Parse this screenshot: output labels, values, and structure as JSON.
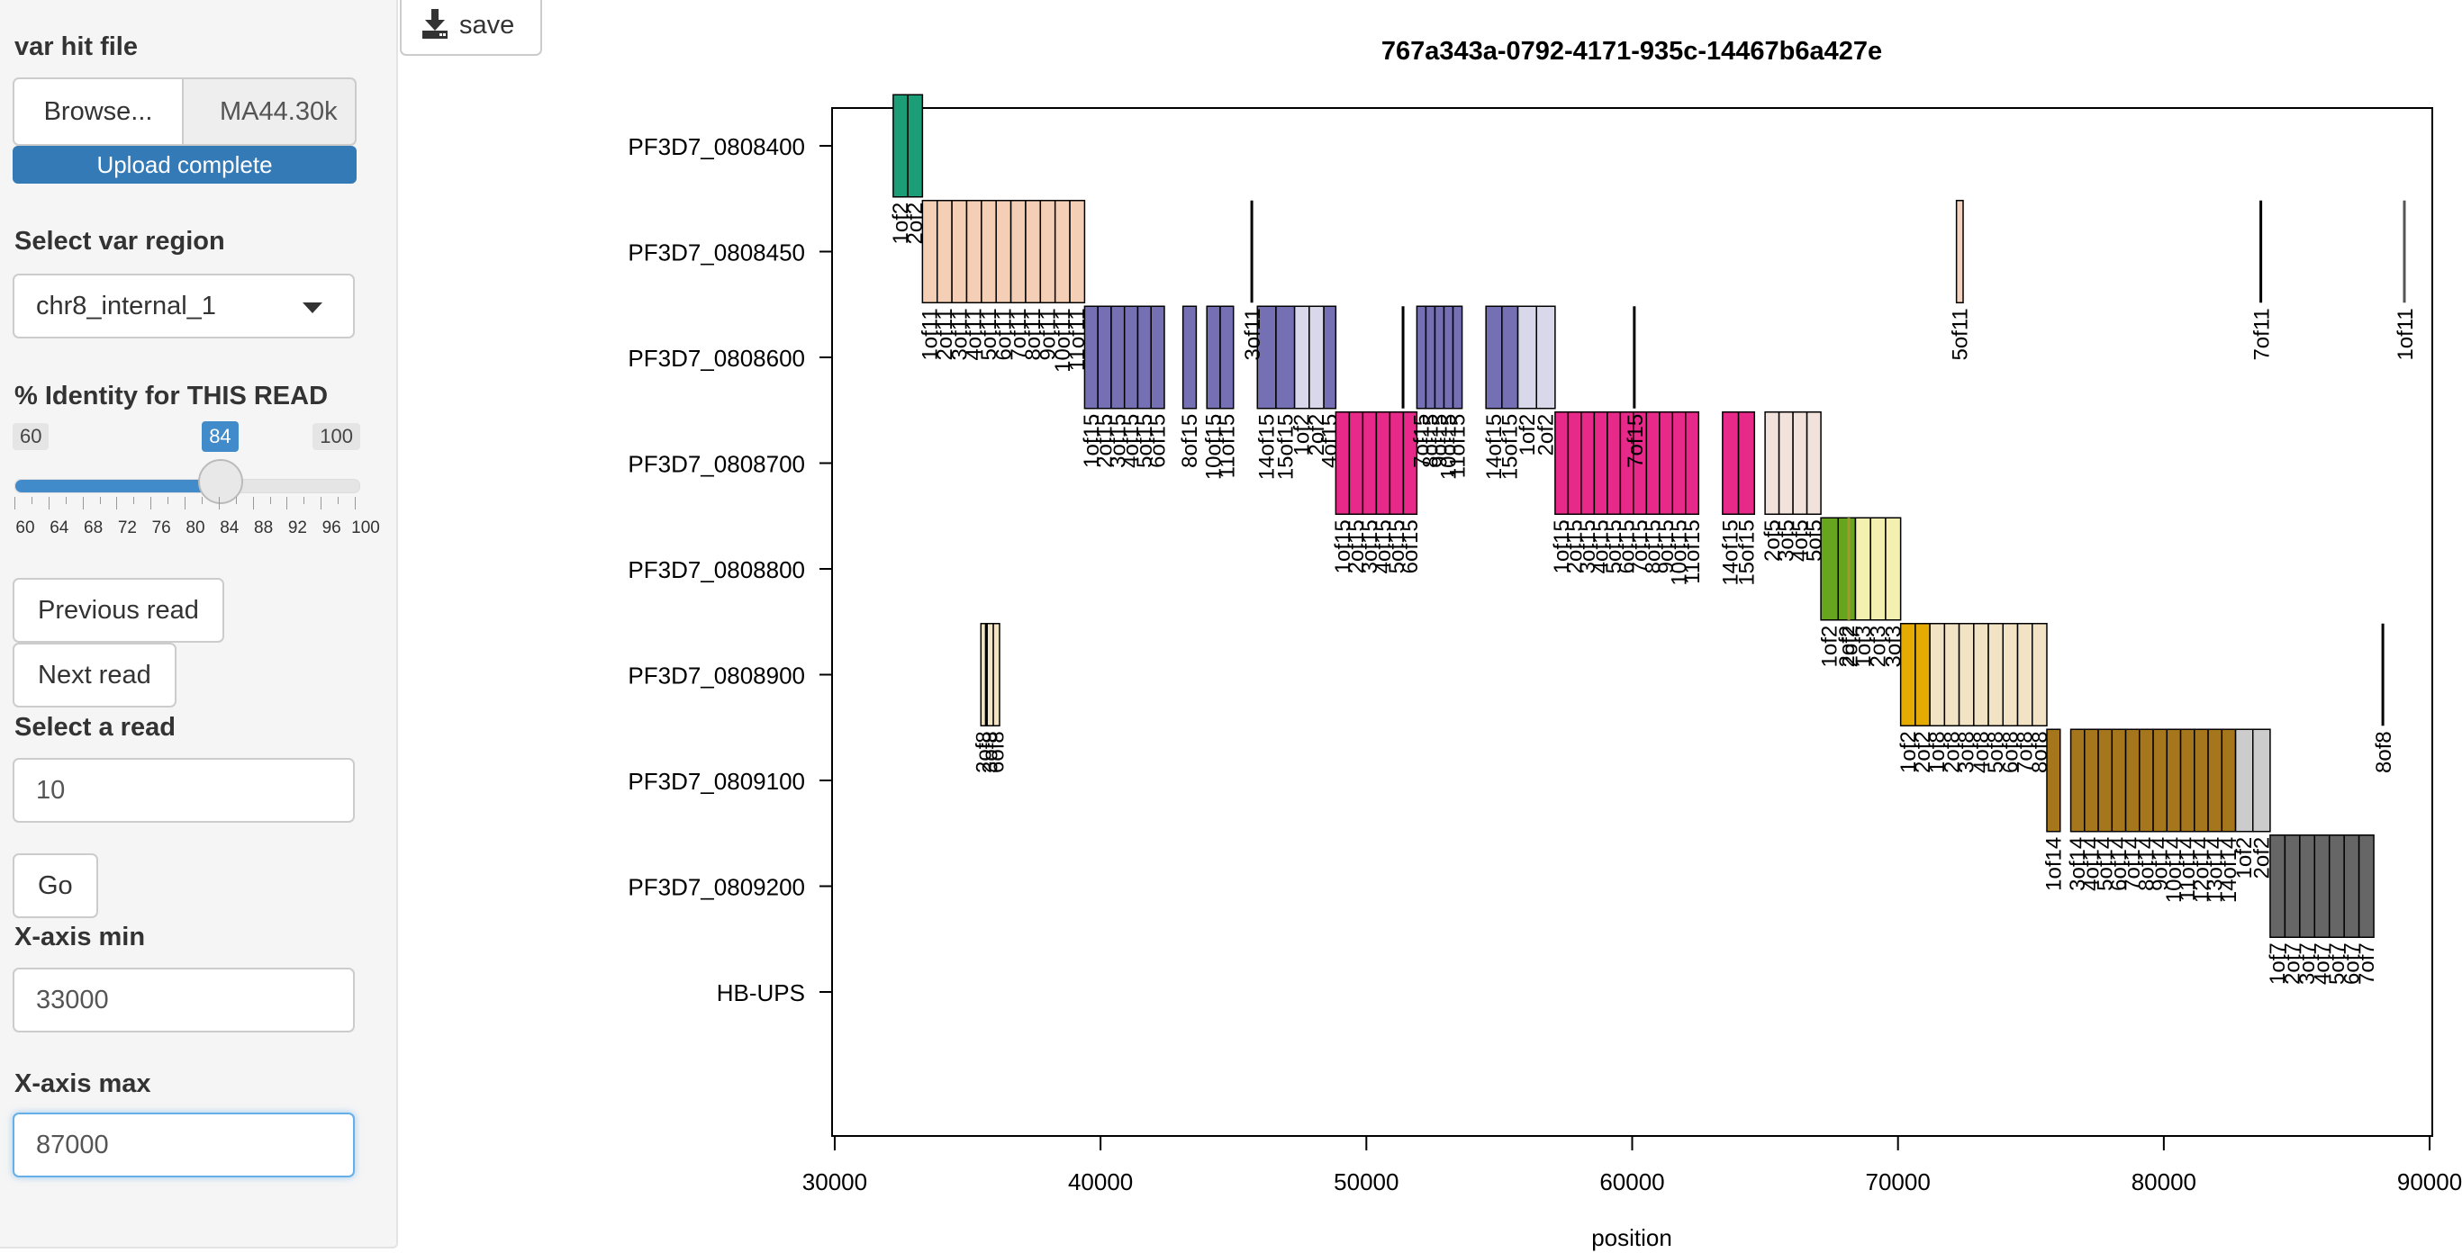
{
  "sidebar": {
    "file_label": "var hit file",
    "browse_label": "Browse...",
    "file_name": "MA44.30k",
    "upload_status": "Upload complete",
    "region_label": "Select var region",
    "region_value": "chr8_internal_1",
    "identity_label": "% Identity for THIS READ",
    "slider": {
      "min": 60,
      "max": 100,
      "value": 84,
      "step": 2,
      "tick_labels": [
        "60",
        "64",
        "68",
        "72",
        "76",
        "80",
        "84",
        "88",
        "92",
        "96",
        "100"
      ]
    },
    "prev_label": "Previous read",
    "next_label": "Next read",
    "read_label": "Select a read",
    "read_value": "10",
    "go_label": "Go",
    "xmin_label": "X-axis min",
    "xmin_value": "33000",
    "xmax_label": "X-axis max",
    "xmax_value": "87000"
  },
  "save_label": "save",
  "chart_data": {
    "type": "bar",
    "title": "767a343a-0792-4171-935c-14467b6a427e",
    "xlabel": "position",
    "ylabel": "",
    "xlim": [
      29900,
      90100
    ],
    "x_ticks": [
      "30000",
      "40000",
      "50000",
      "60000",
      "70000",
      "80000",
      "90000"
    ],
    "categories": [
      "HB-UPS",
      "PF3D7_0809200",
      "PF3D7_0809100",
      "PF3D7_0808900",
      "PF3D7_0808800",
      "PF3D7_0808700",
      "PF3D7_0808600",
      "PF3D7_0808450",
      "PF3D7_0808400"
    ],
    "segments": [
      {
        "gene": "PF3D7_0808400",
        "color": "#1b9e77",
        "start": 32200,
        "end": 33300,
        "labels": [
          "1of2",
          "2of2"
        ]
      },
      {
        "gene": "PF3D7_0808450",
        "color": "#f5cfb5",
        "start": 33300,
        "end": 39400,
        "labels": [
          "1of11",
          "2of11",
          "3of11",
          "4of11",
          "5of11",
          "6of11",
          "7of11",
          "8of11",
          "9of11",
          "10of11",
          "11of11"
        ]
      },
      {
        "gene": "PF3D7_0808600",
        "color": "#7570b3",
        "start": 39400,
        "end": 42400,
        "labels": [
          "1of15",
          "2of15",
          "3of15",
          "4of15",
          "5of15",
          "6of15"
        ]
      },
      {
        "gene": "PF3D7_0808600",
        "color": "#7570b3",
        "start": 43100,
        "end": 43600,
        "labels": [
          "8of15"
        ]
      },
      {
        "gene": "PF3D7_0808600",
        "color": "#7570b3",
        "start": 44000,
        "end": 45000,
        "labels": [
          "10of15",
          "11of15"
        ]
      },
      {
        "gene": "PF3D7_0808600",
        "color": "#7570b3",
        "start": 45900,
        "end": 47300,
        "labels": [
          "14of15",
          "15of15"
        ]
      },
      {
        "gene": "PF3D7_0808600",
        "color": "#d9d7ea",
        "start": 47300,
        "end": 48400,
        "labels": [
          "1of2",
          "2of2"
        ]
      },
      {
        "gene": "PF3D7_0808600",
        "color": "#7570b3",
        "start": 48400,
        "end": 48850,
        "labels": [
          "4of15"
        ]
      },
      {
        "gene": "PF3D7_0808700",
        "color": "#e7298a",
        "start": 48850,
        "end": 51900,
        "labels": [
          "1of15",
          "2of15",
          "3of15",
          "4of15",
          "5of15",
          "6of15"
        ]
      },
      {
        "gene": "PF3D7_0808600",
        "color": "#7570b3",
        "start": 51900,
        "end": 53600,
        "labels": [
          "7of15",
          "8of15",
          "9of15",
          "10of15",
          "11of15"
        ]
      },
      {
        "gene": "PF3D7_0808600",
        "color": "#7570b3",
        "start": 54500,
        "end": 55700,
        "labels": [
          "14of15",
          "15of15"
        ]
      },
      {
        "gene": "PF3D7_0808600",
        "color": "#d9d7ea",
        "start": 55700,
        "end": 57100,
        "labels": [
          "1of2",
          "2of2"
        ]
      },
      {
        "gene": "PF3D7_0808700",
        "color": "#e7298a",
        "start": 57100,
        "end": 62500,
        "labels": [
          "1of15",
          "2of15",
          "3of15",
          "4of15",
          "5of15",
          "6of15",
          "7of15",
          "8of15",
          "9of15",
          "10of15",
          "11of15"
        ]
      },
      {
        "gene": "PF3D7_0808700",
        "color": "#e7298a",
        "start": 63400,
        "end": 64600,
        "labels": [
          "14of15",
          "15of15"
        ]
      },
      {
        "gene": "PF3D7_0808700",
        "color": "#f1e3dc",
        "start": 65000,
        "end": 67100,
        "labels": [
          "2of5",
          "3of5",
          "4of5",
          "5of5"
        ]
      },
      {
        "gene": "PF3D7_0808800",
        "color": "#66a61e",
        "start": 67100,
        "end": 68400,
        "labels": [
          "1of2",
          "2of2"
        ]
      },
      {
        "gene": "PF3D7_0808800",
        "color": "#f3f0b0",
        "start": 68400,
        "end": 70100,
        "labels": [
          "1of3",
          "2of3",
          "3of3"
        ]
      },
      {
        "gene": "PF3D7_0808900",
        "color": "#e6ab02",
        "start": 70100,
        "end": 71200,
        "labels": [
          "1of2",
          "2of2"
        ]
      },
      {
        "gene": "PF3D7_0808900",
        "color": "#f3e3c5",
        "start": 71200,
        "end": 75600,
        "labels": [
          "1of8",
          "2of8",
          "3of8",
          "4of8",
          "5of8",
          "6of8",
          "7of8",
          "8of8"
        ]
      },
      {
        "gene": "PF3D7_0809100",
        "color": "#a6761d",
        "start": 75600,
        "end": 76100,
        "labels": [
          "1of14"
        ]
      },
      {
        "gene": "PF3D7_0809100",
        "color": "#a6761d",
        "start": 76500,
        "end": 82700,
        "labels": [
          "3of14",
          "4of14",
          "5of14",
          "6of14",
          "7of14",
          "8of14",
          "9of14",
          "10of14",
          "11of14",
          "12of14",
          "13of14",
          "14of14"
        ]
      },
      {
        "gene": "PF3D7_0809100",
        "color": "#cccccc",
        "start": 82700,
        "end": 84000,
        "labels": [
          "1of2",
          "2of2"
        ]
      },
      {
        "gene": "PF3D7_0809200",
        "color": "#666666",
        "start": 84000,
        "end": 87900,
        "labels": [
          "1of7",
          "2of7",
          "3of7",
          "4of7",
          "5of7",
          "6of7",
          "7of7"
        ]
      },
      {
        "gene": "PF3D7_0808900",
        "color": "#f3e3c5",
        "start": 35500,
        "end": 36200,
        "labels": [
          "2of8",
          "3of8",
          "6of8"
        ]
      },
      {
        "gene": "PF3D7_0808900",
        "color": "#000000",
        "start": 35700,
        "end": 35720,
        "labels": []
      },
      {
        "gene": "PF3D7_0808800",
        "color": "#a09a30",
        "start": 68150,
        "end": 68250,
        "labels": [
          "2of2"
        ]
      },
      {
        "gene": "PF3D7_0808900",
        "color": "#000000",
        "start": 88240,
        "end": 88300,
        "labels": [
          "8of8"
        ]
      },
      {
        "gene": "PF3D7_0808450",
        "color": "#f3d3c0",
        "start": 72200,
        "end": 72450,
        "labels": [
          "5of11"
        ]
      },
      {
        "gene": "PF3D7_0808450",
        "color": "#000000",
        "start": 45690,
        "end": 45720,
        "labels": [
          "3of11"
        ]
      },
      {
        "gene": "PF3D7_0808450",
        "color": "#000000",
        "start": 83650,
        "end": 83700,
        "labels": [
          "7of11"
        ]
      },
      {
        "gene": "PF3D7_0808450",
        "color": "#555555",
        "start": 89050,
        "end": 89110,
        "labels": [
          "1of11"
        ]
      },
      {
        "gene": "PF3D7_0808600",
        "color": "#000000",
        "start": 51380,
        "end": 51420,
        "labels": []
      },
      {
        "gene": "PF3D7_0808600",
        "color": "#000000",
        "start": 60080,
        "end": 60120,
        "labels": [
          "7of15"
        ]
      }
    ]
  }
}
